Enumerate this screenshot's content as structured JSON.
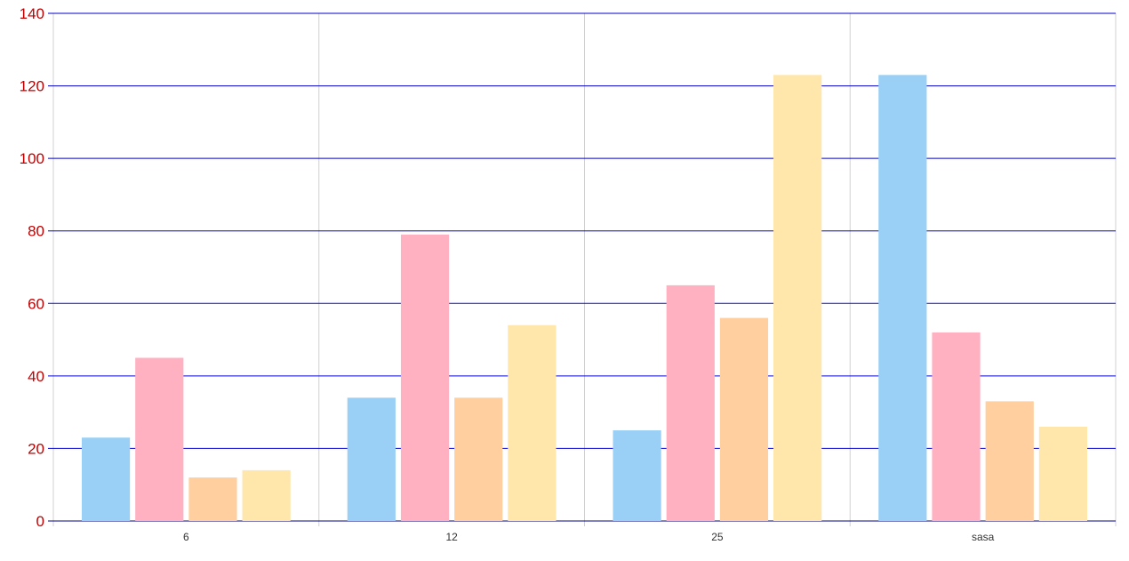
{
  "chart_data": {
    "type": "bar",
    "categories": [
      "6",
      "12",
      "25",
      "sasa"
    ],
    "series": [
      {
        "values": [
          23,
          34,
          25,
          123
        ],
        "color": "#9ad0f5"
      },
      {
        "values": [
          45,
          79,
          65,
          52
        ],
        "color": "#ffb0c1"
      },
      {
        "values": [
          12,
          34,
          56,
          33
        ],
        "color": "#ffcf9f"
      },
      {
        "values": [
          14,
          54,
          123,
          26
        ],
        "color": "#ffe6aa"
      }
    ],
    "ylim": [
      0,
      140
    ],
    "yticks": [
      0,
      20,
      40,
      60,
      80,
      100,
      120,
      140
    ],
    "title": "",
    "xlabel": "",
    "ylabel": "",
    "grid": true,
    "colors": {
      "horizontal_grid": "#0000cc",
      "vertical_grid": "#d0d0d0",
      "baseline": "#000080",
      "ytick_label": "#c00000",
      "xtick_label": "#333333"
    }
  }
}
